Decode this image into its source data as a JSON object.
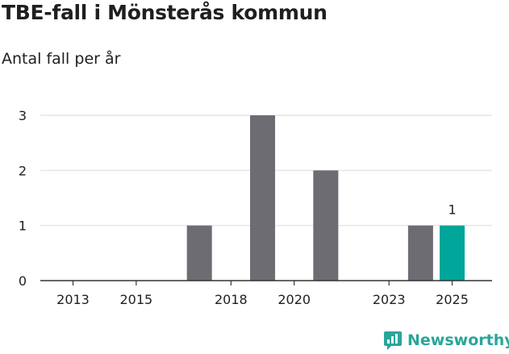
{
  "title": "TBE-fall i Mönsterås kommun",
  "subtitle": "Antal fall per år",
  "brand": "Newsworthy",
  "colors": {
    "bar": "#6e6c73",
    "highlight": "#00a699",
    "grid": "#e6e6e6",
    "axis": "#333333",
    "text": "#1f1f1f"
  },
  "chart_data": {
    "type": "bar",
    "title": "TBE-fall i Mönsterås kommun",
    "ylabel": "Antal fall per år",
    "x": [
      2013,
      2014,
      2015,
      2016,
      2017,
      2018,
      2019,
      2020,
      2021,
      2022,
      2023,
      2024,
      2025
    ],
    "values": [
      0,
      0,
      0,
      0,
      1,
      0,
      3,
      0,
      2,
      0,
      0,
      1,
      1
    ],
    "highlight_index": 12,
    "data_labels": [
      {
        "index": 12,
        "text": "1"
      }
    ],
    "ylim": [
      0,
      3
    ],
    "yticks": [
      0,
      1,
      2,
      3
    ],
    "xticks": [
      "2013",
      "2015",
      "2018",
      "2020",
      "2023",
      "2025"
    ]
  }
}
